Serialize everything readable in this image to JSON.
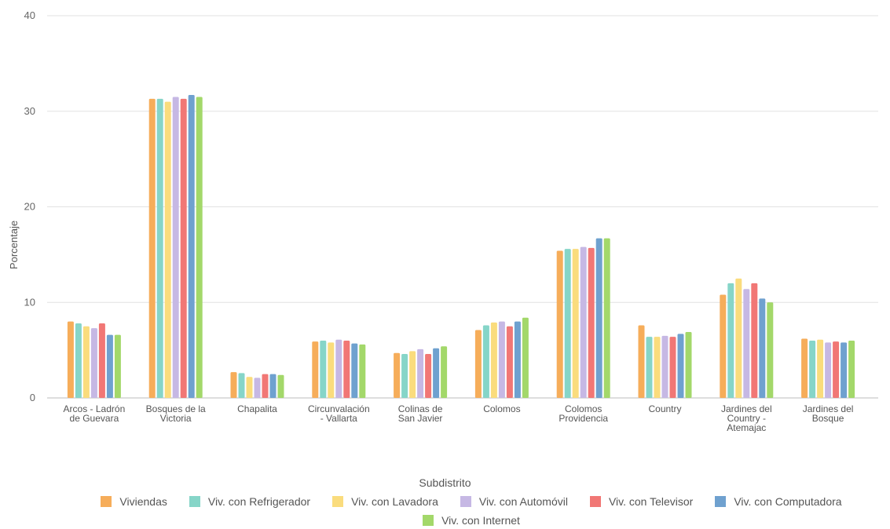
{
  "chart_data": {
    "type": "bar",
    "title": "",
    "xlabel": "Subdistrito",
    "ylabel": "Porcentaje",
    "ylim": [
      0,
      40
    ],
    "yticks": [
      0,
      10,
      20,
      30,
      40
    ],
    "grid": true,
    "legend_position": "bottom",
    "categories": [
      [
        "Arcos - Ladrón",
        "de Guevara"
      ],
      [
        "Bosques de la",
        "Victoria"
      ],
      [
        "Chapalita"
      ],
      [
        "Circunvalación",
        "- Vallarta"
      ],
      [
        "Colinas de",
        "San Javier"
      ],
      [
        "Colomos"
      ],
      [
        "Colomos",
        "Providencia"
      ],
      [
        "Country"
      ],
      [
        "Jardines del",
        "Country -",
        "Atemajac"
      ],
      [
        "Jardines del",
        "Bosque"
      ]
    ],
    "series": [
      {
        "name": "Viviendas",
        "color": "#f6ad5a",
        "values": [
          8.0,
          31.3,
          2.7,
          5.9,
          4.7,
          7.1,
          15.4,
          7.6,
          10.8,
          6.2
        ]
      },
      {
        "name": "Viv. con Refrigerador",
        "color": "#86d5c8",
        "values": [
          7.8,
          31.3,
          2.6,
          6.0,
          4.6,
          7.6,
          15.6,
          6.4,
          12.0,
          6.0
        ]
      },
      {
        "name": "Viv. con Lavadora",
        "color": "#fadc7d",
        "values": [
          7.5,
          31.0,
          2.2,
          5.8,
          4.9,
          7.9,
          15.6,
          6.4,
          12.5,
          6.1
        ]
      },
      {
        "name": "Viv. con Automóvil",
        "color": "#c6b8e4",
        "values": [
          7.3,
          31.5,
          2.1,
          6.1,
          5.1,
          8.0,
          15.8,
          6.5,
          11.4,
          5.8
        ]
      },
      {
        "name": "Viv. con Televisor",
        "color": "#f17775",
        "values": [
          7.8,
          31.3,
          2.5,
          6.0,
          4.6,
          7.5,
          15.7,
          6.4,
          12.0,
          5.9
        ]
      },
      {
        "name": "Viv. con Computadora",
        "color": "#6fa1cf",
        "values": [
          6.6,
          31.7,
          2.5,
          5.7,
          5.2,
          8.0,
          16.7,
          6.7,
          10.4,
          5.8
        ]
      },
      {
        "name": "Viv. con Internet",
        "color": "#a3d86a",
        "values": [
          6.6,
          31.5,
          2.4,
          5.6,
          5.4,
          8.4,
          16.7,
          6.9,
          10.0,
          6.0
        ]
      }
    ]
  }
}
